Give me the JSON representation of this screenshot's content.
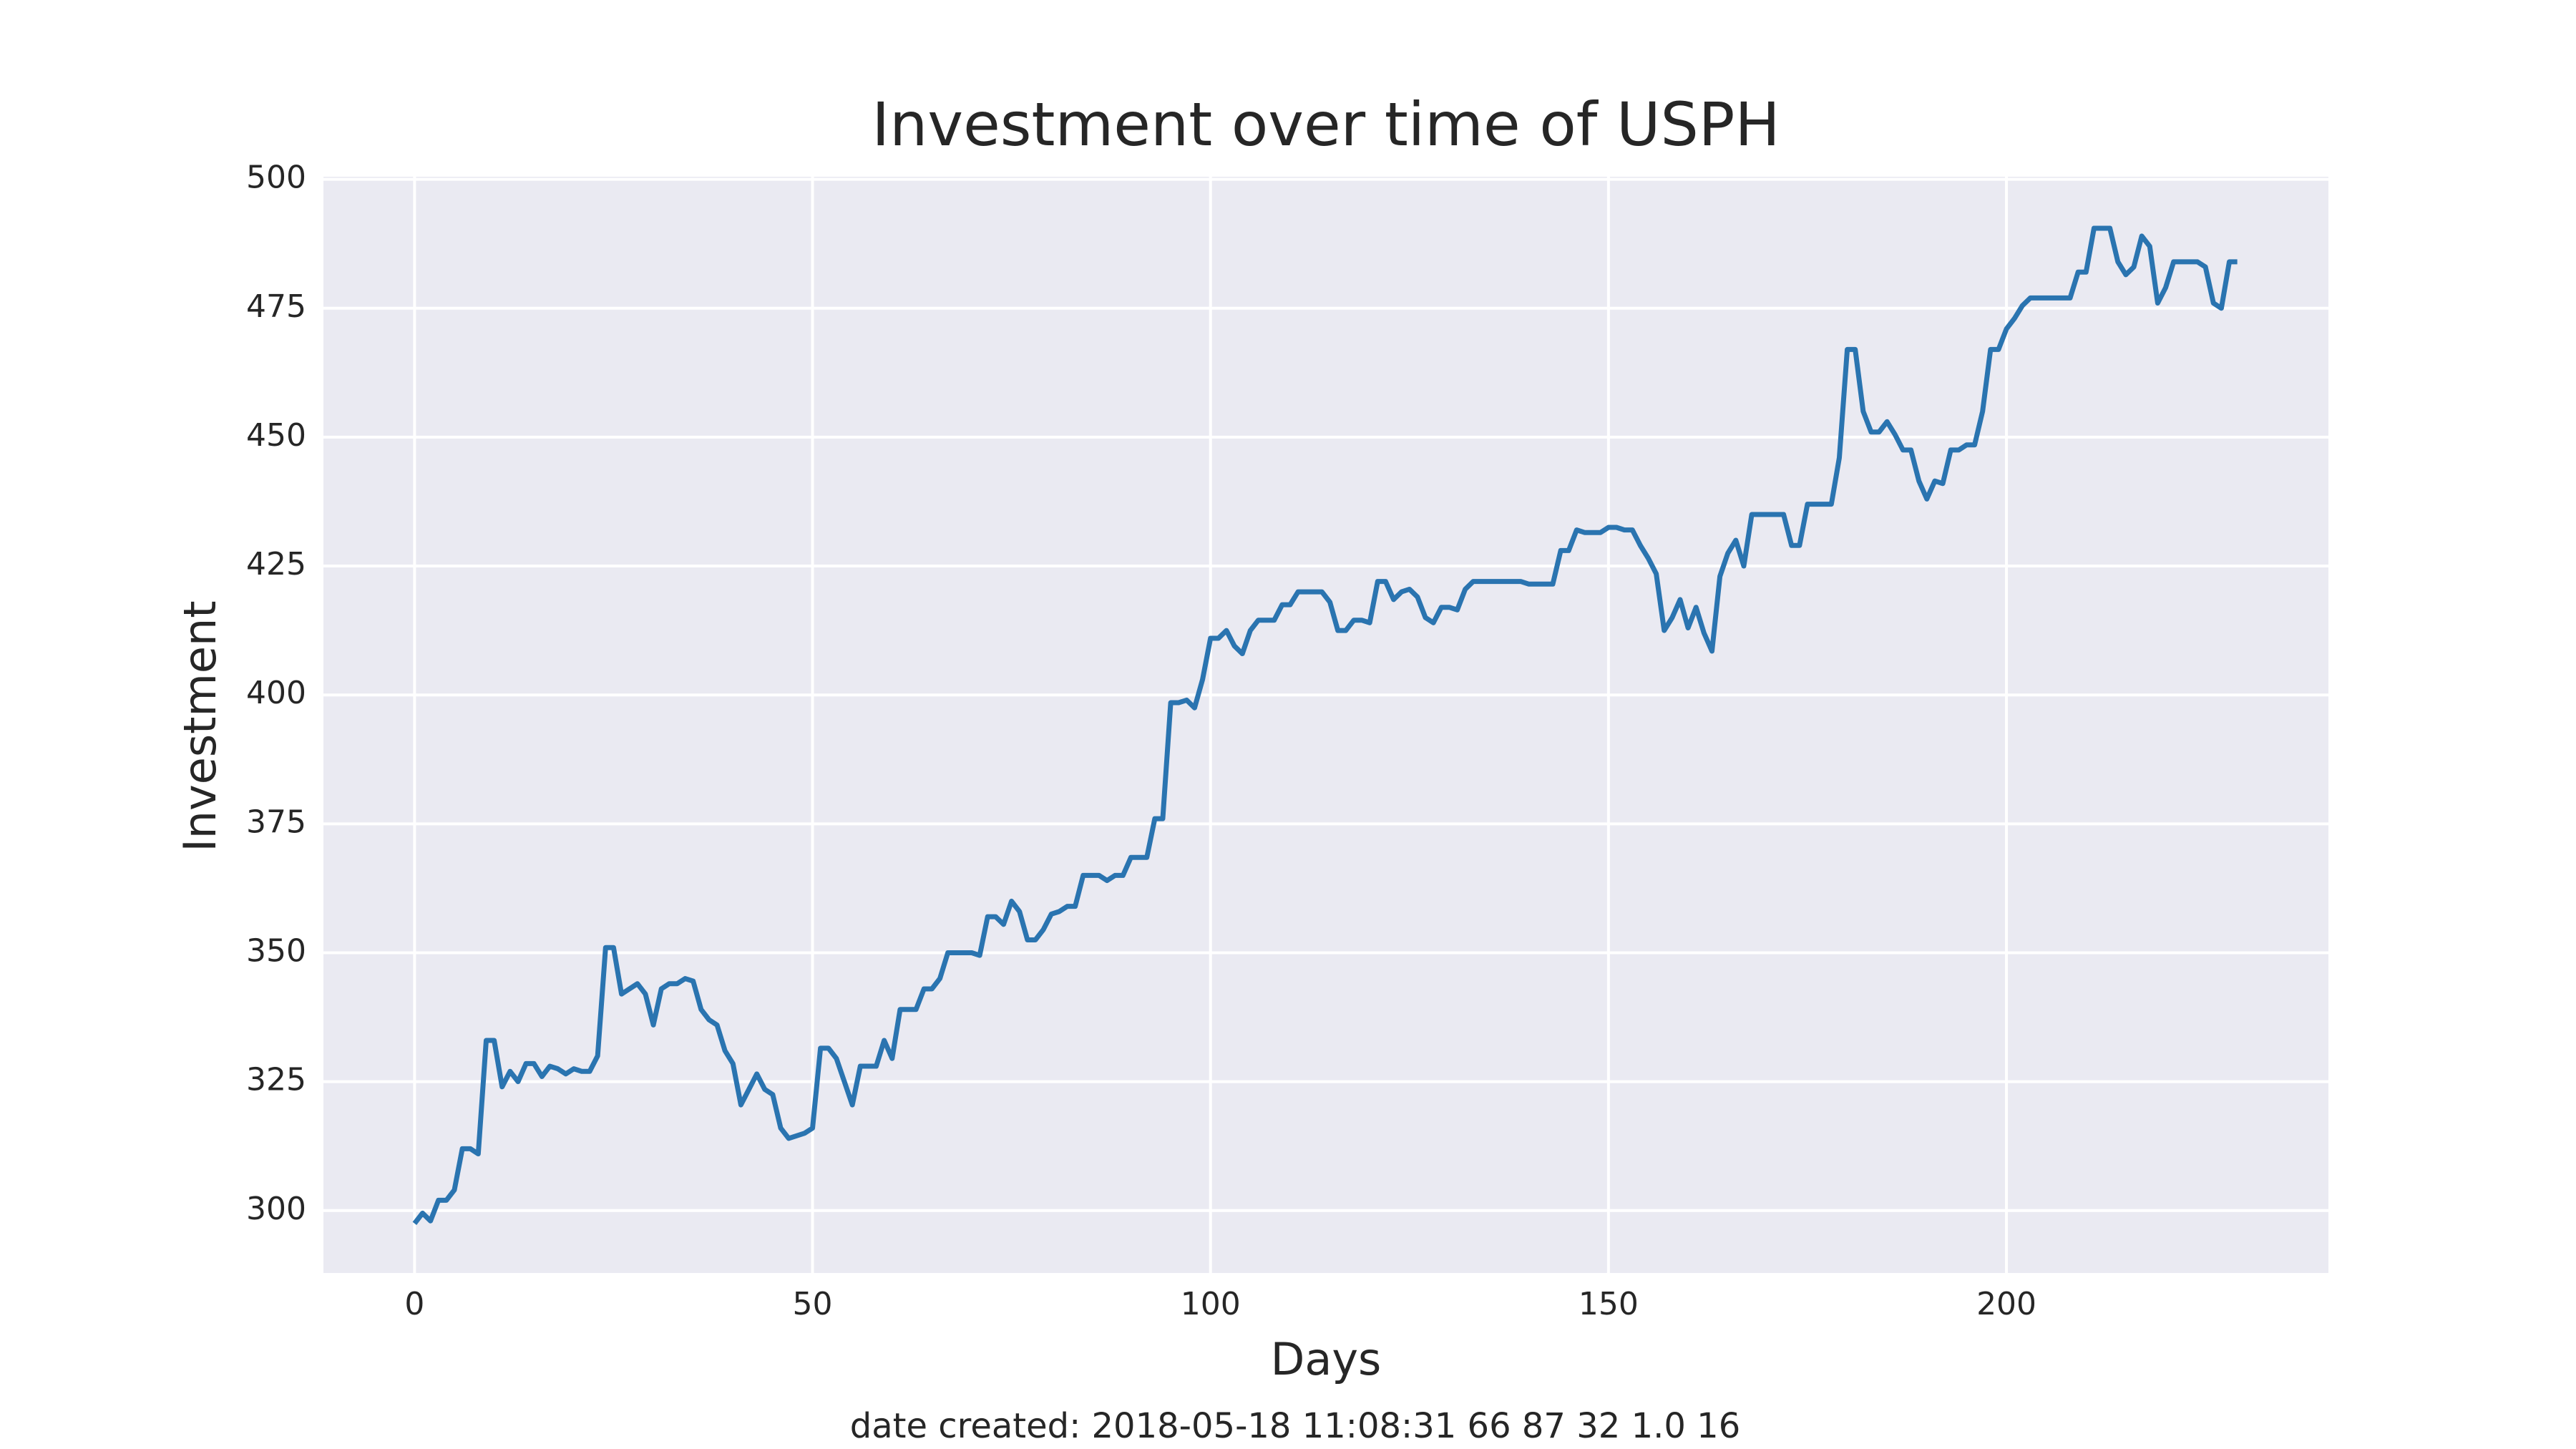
{
  "chart_data": {
    "type": "line",
    "title": "Investment over time of USPH",
    "xlabel": "Days",
    "ylabel": "Investment",
    "footer": "date created: 2018-05-18 11:08:31 66 87 32 1.0 16",
    "x": [
      0,
      1,
      2,
      3,
      4,
      5,
      6,
      7,
      8,
      9,
      10,
      11,
      12,
      13,
      14,
      15,
      16,
      17,
      18,
      19,
      20,
      21,
      22,
      23,
      24,
      25,
      26,
      27,
      28,
      29,
      30,
      31,
      32,
      33,
      34,
      35,
      36,
      37,
      38,
      39,
      40,
      41,
      42,
      43,
      44,
      45,
      46,
      47,
      48,
      49,
      50,
      51,
      52,
      53,
      54,
      55,
      56,
      57,
      58,
      59,
      60,
      61,
      62,
      63,
      64,
      65,
      66,
      67,
      68,
      69,
      70,
      71,
      72,
      73,
      74,
      75,
      76,
      77,
      78,
      79,
      80,
      81,
      82,
      83,
      84,
      85,
      86,
      87,
      88,
      89,
      90,
      91,
      92,
      93,
      94,
      95,
      96,
      97,
      98,
      99,
      100,
      101,
      102,
      103,
      104,
      105,
      106,
      107,
      108,
      109,
      110,
      111,
      112,
      113,
      114,
      115,
      116,
      117,
      118,
      119,
      120,
      121,
      122,
      123,
      124,
      125,
      126,
      127,
      128,
      129,
      130,
      131,
      132,
      133,
      134,
      135,
      136,
      137,
      138,
      139,
      140,
      141,
      142,
      143,
      144,
      145,
      146,
      147,
      148,
      149,
      150,
      151,
      152,
      153,
      154,
      155,
      156,
      157,
      158,
      159,
      160,
      161,
      162,
      163,
      164,
      165,
      166,
      167,
      168,
      169,
      170,
      171,
      172,
      173,
      174,
      175,
      176,
      177,
      178,
      179,
      180,
      181,
      182,
      183,
      184,
      185,
      186,
      187,
      188,
      189,
      190,
      191,
      192,
      193,
      194,
      195,
      196,
      197,
      198,
      199,
      200,
      201,
      202,
      203,
      204,
      205,
      206,
      207,
      208,
      209,
      210,
      211,
      212,
      213,
      214,
      215,
      216,
      217,
      218,
      219,
      220,
      221,
      222,
      223,
      224,
      225,
      226,
      227,
      228,
      229
    ],
    "series": [
      {
        "name": "Investment",
        "color": "#2a74b0",
        "values": [
          297.5,
          299.5,
          298,
          302,
          302,
          304,
          312,
          312,
          311,
          333,
          333,
          324,
          327,
          325,
          328.5,
          328.5,
          326,
          328,
          327.5,
          326.5,
          327.5,
          327,
          327,
          330,
          351,
          351,
          342,
          343,
          344,
          342,
          336,
          343,
          344,
          344,
          345,
          344.5,
          339,
          337,
          336,
          331,
          328.5,
          320.5,
          323.5,
          326.5,
          323.5,
          322.5,
          316,
          314,
          314.5,
          315,
          316,
          331.5,
          331.5,
          329.5,
          325,
          320.5,
          328,
          328,
          328,
          333,
          329.5,
          339,
          339,
          339,
          343,
          343,
          345,
          350,
          350,
          350,
          350,
          349.5,
          357,
          357,
          355.5,
          360,
          358,
          352.5,
          352.5,
          354.5,
          357.5,
          358,
          359,
          359,
          365,
          365,
          365,
          364,
          365,
          365,
          368.5,
          368.5,
          368.5,
          376,
          376,
          398.5,
          398.5,
          399,
          397.5,
          403,
          411,
          411,
          412.5,
          409.5,
          408,
          412.5,
          414.5,
          414.5,
          414.5,
          417.5,
          417.5,
          420,
          420,
          420,
          420,
          418,
          412.5,
          412.5,
          414.5,
          414.5,
          414,
          422,
          422,
          418.5,
          420,
          420.5,
          419,
          415,
          414,
          417,
          417,
          416.5,
          420.5,
          422,
          422,
          422,
          422,
          422,
          422,
          422,
          421.5,
          421.5,
          421.5,
          421.5,
          428,
          428,
          432,
          431.5,
          431.5,
          431.5,
          432.5,
          432.5,
          432,
          432,
          429,
          426.5,
          423.5,
          412.5,
          415,
          418.5,
          413,
          417,
          412,
          408.5,
          423,
          427.5,
          430,
          425,
          435,
          435,
          435,
          435,
          435,
          429,
          429,
          437,
          437,
          437,
          437,
          446,
          467,
          467,
          455,
          451,
          451,
          453,
          450.5,
          447.5,
          447.5,
          441.5,
          438,
          441.5,
          441,
          447.5,
          447.5,
          448.5,
          448.5,
          455,
          467,
          467,
          471,
          473,
          475.5,
          477,
          477,
          477,
          477,
          477,
          477,
          482,
          482,
          490.5,
          490.5,
          490.5,
          484,
          481.5,
          483,
          489,
          487,
          476,
          479,
          484,
          484,
          484,
          484,
          483,
          476,
          475,
          484,
          484
        ]
      }
    ],
    "xlim": [
      -11.45,
      240.45
    ],
    "xticks": [
      0,
      50,
      100,
      150,
      200
    ],
    "ylim": [
      287.9,
      500.5
    ],
    "yticks": [
      300,
      325,
      350,
      375,
      400,
      425,
      450,
      475,
      500
    ],
    "grid": true
  }
}
